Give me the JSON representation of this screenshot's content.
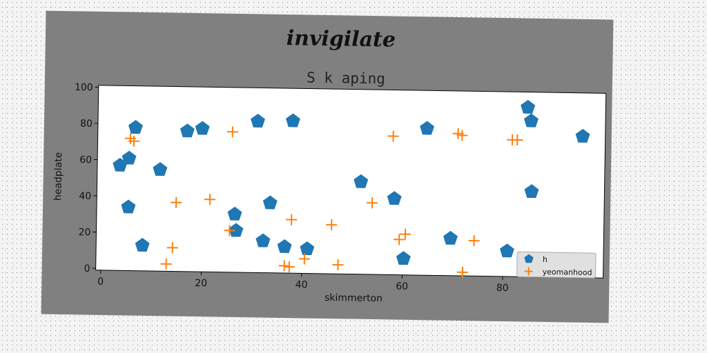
{
  "chart_data": {
    "type": "scatter",
    "suptitle": "invigilate",
    "title": "S k aping",
    "xlabel": "skimmerton",
    "ylabel": "headplate",
    "xlim": [
      -1,
      100
    ],
    "ylim": [
      -1,
      101
    ],
    "xticks": [
      0,
      20,
      40,
      60,
      80
    ],
    "yticks": [
      0,
      20,
      40,
      60,
      80,
      100
    ],
    "grid": false,
    "legend_position": "lower-right",
    "series": [
      {
        "name": "h",
        "marker": "pentagon",
        "color": "#1f77b4",
        "points": [
          [
            3.5,
            57
          ],
          [
            5.3,
            61
          ],
          [
            6.5,
            78
          ],
          [
            5.3,
            34
          ],
          [
            8.2,
            13
          ],
          [
            11.5,
            55
          ],
          [
            16.8,
            76.5
          ],
          [
            19.8,
            78
          ],
          [
            26.5,
            31
          ],
          [
            26.8,
            22
          ],
          [
            30.8,
            82.5
          ],
          [
            32.2,
            16.5
          ],
          [
            33.5,
            37.5
          ],
          [
            36.5,
            13.5
          ],
          [
            37.8,
            83
          ],
          [
            41,
            12.5
          ],
          [
            51.5,
            50
          ],
          [
            58.2,
            41
          ],
          [
            60.2,
            8
          ],
          [
            64.5,
            80
          ],
          [
            69.5,
            19.5
          ],
          [
            80.8,
            13
          ],
          [
            84.5,
            92.5
          ],
          [
            85.2,
            85
          ],
          [
            85.5,
            46
          ],
          [
            95.5,
            77
          ]
        ]
      },
      {
        "name": "yeomanhood",
        "marker": "plus",
        "color": "#ff7f0e",
        "points": [
          [
            5.5,
            72
          ],
          [
            6.2,
            70.5
          ],
          [
            13,
            3
          ],
          [
            14.2,
            12
          ],
          [
            14.8,
            37
          ],
          [
            21.5,
            39
          ],
          [
            25.5,
            22
          ],
          [
            25.8,
            76.5
          ],
          [
            36.5,
            3
          ],
          [
            37.5,
            2.5
          ],
          [
            37.8,
            28.5
          ],
          [
            40.5,
            7
          ],
          [
            45.8,
            26
          ],
          [
            47.2,
            4
          ],
          [
            53.8,
            38.5
          ],
          [
            57.8,
            75.5
          ],
          [
            59.3,
            18.5
          ],
          [
            60.5,
            21.5
          ],
          [
            70.7,
            77.5
          ],
          [
            71.5,
            76.5
          ],
          [
            72,
            1
          ],
          [
            74.2,
            18.5
          ],
          [
            81.5,
            74.5
          ],
          [
            82.5,
            74.5
          ]
        ]
      }
    ]
  }
}
